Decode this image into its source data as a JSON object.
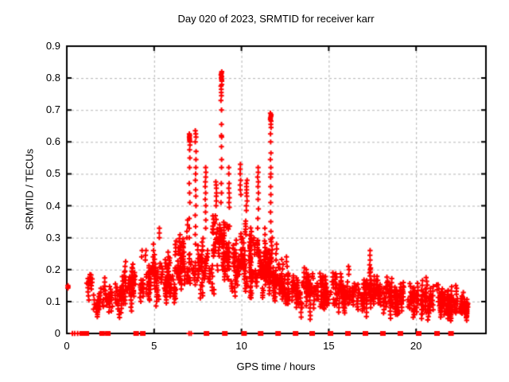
{
  "chart_data": {
    "type": "scatter",
    "title": "Day 020 of 2023, SRMTID for receiver karr",
    "xlabel": "GPS time / hours",
    "ylabel": "SRMTID / TECUs",
    "xlim": [
      0,
      24
    ],
    "ylim": [
      0,
      0.9
    ],
    "xticks": [
      0,
      5,
      10,
      15,
      20
    ],
    "xtick_labels": [
      "0",
      "5",
      "10",
      "15",
      "20"
    ],
    "yticks": [
      0,
      0.1,
      0.2,
      0.3,
      0.4,
      0.5,
      0.6,
      0.7,
      0.8,
      0.9
    ],
    "ytick_labels": [
      "0",
      "0.1",
      "0.2",
      "0.3",
      "0.4",
      "0.5",
      "0.6",
      "0.7",
      "0.8",
      "0.9"
    ],
    "grid": true,
    "legend": "none",
    "marker": "plus",
    "palette": {
      "marker": "#ff0000",
      "grid": "#b4b4b4",
      "axis": "#000000",
      "background": "#ffffff"
    },
    "seed": 42,
    "band_fields": [
      "t_start",
      "t_end",
      "count",
      "y_min",
      "y_max"
    ],
    "bands": [
      [
        1.15,
        1.5,
        22,
        0.11,
        0.19
      ],
      [
        1.5,
        2.1,
        30,
        0.06,
        0.14
      ],
      [
        2.1,
        3.2,
        75,
        0.07,
        0.17
      ],
      [
        3.2,
        4.2,
        70,
        0.08,
        0.2
      ],
      [
        4.2,
        5.2,
        80,
        0.09,
        0.22
      ],
      [
        5.2,
        6.2,
        90,
        0.1,
        0.24
      ],
      [
        6.2,
        6.7,
        55,
        0.12,
        0.3
      ],
      [
        6.7,
        7.2,
        30,
        0.13,
        0.27
      ],
      [
        7.2,
        7.6,
        28,
        0.14,
        0.26
      ],
      [
        7.6,
        8.35,
        55,
        0.1,
        0.3
      ],
      [
        8.35,
        8.75,
        40,
        0.12,
        0.4
      ],
      [
        8.75,
        9.0,
        30,
        0.13,
        0.38
      ],
      [
        9.0,
        9.55,
        55,
        0.13,
        0.36
      ],
      [
        9.55,
        10.05,
        55,
        0.11,
        0.35
      ],
      [
        10.05,
        10.55,
        65,
        0.12,
        0.38
      ],
      [
        10.55,
        11.2,
        75,
        0.1,
        0.32
      ],
      [
        11.2,
        11.6,
        60,
        0.1,
        0.3
      ],
      [
        11.6,
        11.8,
        30,
        0.11,
        0.28
      ],
      [
        11.8,
        12.35,
        65,
        0.08,
        0.24
      ],
      [
        12.35,
        13.35,
        90,
        0.07,
        0.2
      ],
      [
        13.35,
        14.35,
        90,
        0.07,
        0.19
      ],
      [
        14.35,
        15.35,
        85,
        0.06,
        0.18
      ],
      [
        15.35,
        16.35,
        85,
        0.06,
        0.19
      ],
      [
        16.35,
        17.25,
        80,
        0.07,
        0.18
      ],
      [
        17.25,
        17.65,
        45,
        0.08,
        0.2
      ],
      [
        17.65,
        18.65,
        80,
        0.06,
        0.17
      ],
      [
        18.65,
        19.65,
        80,
        0.05,
        0.17
      ],
      [
        19.65,
        20.65,
        80,
        0.05,
        0.16
      ],
      [
        20.65,
        21.65,
        80,
        0.04,
        0.16
      ],
      [
        21.65,
        22.45,
        70,
        0.03,
        0.14
      ],
      [
        22.45,
        22.95,
        50,
        0.04,
        0.12
      ]
    ],
    "streaks": [
      {
        "t": 0.07,
        "ys": [
          0.142,
          0.146,
          0.15
        ]
      },
      {
        "t": 3.0,
        "ys": [
          0.05,
          0.06,
          0.07
        ]
      },
      {
        "t": 3.35,
        "ys": [
          0.195,
          0.21,
          0.225
        ]
      },
      {
        "t": 4.3,
        "ys": [
          0.24,
          0.26
        ]
      },
      {
        "t": 4.52,
        "ys": [
          0.23,
          0.245,
          0.26
        ]
      },
      {
        "t": 4.97,
        "ys": [
          0.24,
          0.26,
          0.28
        ]
      },
      {
        "t": 5.3,
        "ys": [
          0.3,
          0.315,
          0.33
        ]
      },
      {
        "t": 5.8,
        "ys": [
          0.24,
          0.255
        ]
      },
      {
        "t": 6.4,
        "ys": [
          0.25,
          0.27
        ]
      },
      {
        "t": 6.9,
        "ys": [
          0.3,
          0.32,
          0.34,
          0.355
        ]
      },
      {
        "t": 7.03,
        "ys": [
          0.3,
          0.33,
          0.36,
          0.41,
          0.44,
          0.47,
          0.52,
          0.55,
          0.575,
          0.59,
          0.6,
          0.605,
          0.61,
          0.615,
          0.62,
          0.625
        ]
      },
      {
        "t": 7.38,
        "ys": [
          0.28,
          0.31,
          0.335,
          0.37,
          0.4,
          0.43,
          0.45,
          0.48,
          0.5,
          0.52,
          0.545,
          0.57,
          0.6,
          0.615,
          0.625,
          0.635
        ]
      },
      {
        "t": 7.95,
        "ys": [
          0.33,
          0.355,
          0.38,
          0.4,
          0.42,
          0.44,
          0.46,
          0.475,
          0.49,
          0.505,
          0.52
        ]
      },
      {
        "t": 8.55,
        "ys": [
          0.4,
          0.415,
          0.43,
          0.44,
          0.455,
          0.465,
          0.475
        ]
      },
      {
        "t": 8.85,
        "ys": [
          0.41,
          0.44,
          0.47,
          0.52,
          0.545,
          0.585,
          0.615,
          0.62,
          0.655,
          0.7,
          0.73,
          0.745,
          0.755,
          0.765,
          0.775,
          0.78,
          0.79,
          0.795,
          0.8,
          0.805,
          0.81,
          0.815,
          0.82
        ]
      },
      {
        "t": 9.3,
        "ys": [
          0.395,
          0.41,
          0.425,
          0.44,
          0.455,
          0.47,
          0.5,
          0.52
        ]
      },
      {
        "t": 9.95,
        "ys": [
          0.435,
          0.45,
          0.465,
          0.48,
          0.5,
          0.515,
          0.53
        ]
      },
      {
        "t": 10.3,
        "ys": [
          0.385,
          0.4,
          0.415,
          0.43,
          0.44,
          0.45,
          0.46,
          0.47,
          0.48
        ]
      },
      {
        "t": 10.95,
        "ys": [
          0.33,
          0.36,
          0.39,
          0.42,
          0.44,
          0.46,
          0.475,
          0.49,
          0.505,
          0.52
        ]
      },
      {
        "t": 11.35,
        "ys": [
          0.29,
          0.31,
          0.33
        ]
      },
      {
        "t": 11.68,
        "ys": [
          0.295,
          0.32,
          0.35,
          0.38,
          0.41,
          0.435,
          0.46,
          0.49,
          0.5,
          0.52,
          0.545,
          0.565,
          0.6,
          0.625,
          0.645,
          0.655,
          0.665,
          0.67,
          0.675,
          0.68,
          0.685,
          0.69
        ]
      },
      {
        "t": 12.0,
        "ys": [
          0.23,
          0.25,
          0.265,
          0.28
        ]
      },
      {
        "t": 12.6,
        "ys": [
          0.21,
          0.225,
          0.24
        ]
      },
      {
        "t": 13.8,
        "ys": [
          0.175,
          0.185
        ]
      },
      {
        "t": 16.15,
        "ys": [
          0.185,
          0.2,
          0.21
        ]
      },
      {
        "t": 17.35,
        "ys": [
          0.19,
          0.2,
          0.215,
          0.23,
          0.245,
          0.26
        ]
      }
    ],
    "zero_marks": {
      "block_t": [
        0.88,
        1.02,
        1.12,
        2.02,
        2.35,
        3.97,
        4.35,
        8.0,
        9.05,
        10.15,
        11.1,
        12.1,
        13.1,
        14.05,
        15.1,
        16.1,
        17.1,
        18.1,
        19.1,
        20.15,
        21.2,
        22.0
      ],
      "plus_t": [
        0.32,
        0.45,
        0.62,
        7.0,
        7.12
      ]
    }
  }
}
